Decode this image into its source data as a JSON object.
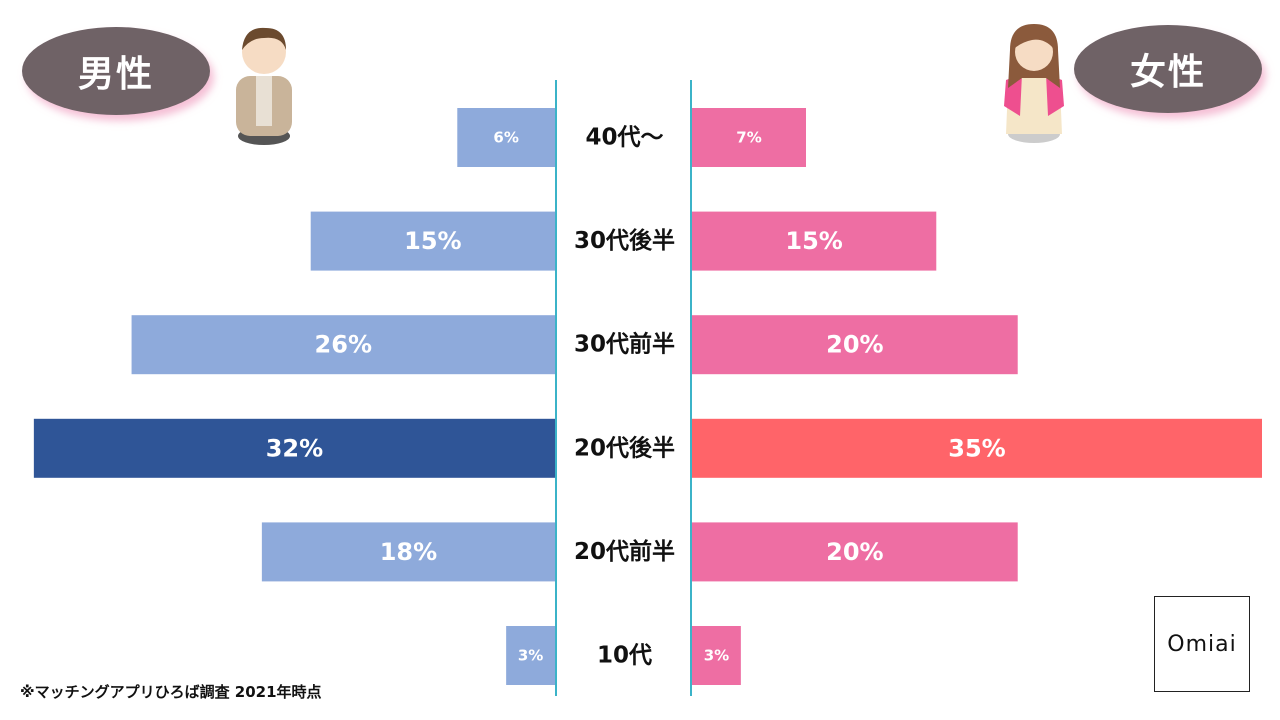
{
  "legend": {
    "male_label": "男性",
    "female_label": "女性"
  },
  "footnote": "※マッチングアプリひろば調査 2021年時点",
  "logo_text": "Omiai",
  "colors": {
    "male_bar": "#8eaadb",
    "male_highlight": "#2f5597",
    "female_bar": "#ee6ea3",
    "female_highlight": "#ff6469",
    "axis_line": "#3bb3c8",
    "legend_pill": "#6f6266"
  },
  "chart_data": {
    "type": "bar",
    "orientation": "horizontal-butterfly",
    "categories": [
      "40代〜",
      "30代後半",
      "30代前半",
      "20代後半",
      "20代前半",
      "10代"
    ],
    "series": [
      {
        "name": "男性",
        "values": [
          6,
          15,
          26,
          32,
          18,
          3
        ],
        "labels": [
          "6%",
          "15%",
          "26%",
          "32%",
          "18%",
          "3%"
        ],
        "highlight_index": 3
      },
      {
        "name": "女性",
        "values": [
          7,
          15,
          20,
          35,
          20,
          3
        ],
        "labels": [
          "7%",
          "15%",
          "20%",
          "35%",
          "20%",
          "3%"
        ],
        "highlight_index": 3
      }
    ],
    "unit": "%",
    "xlim": [
      0,
      35
    ]
  }
}
